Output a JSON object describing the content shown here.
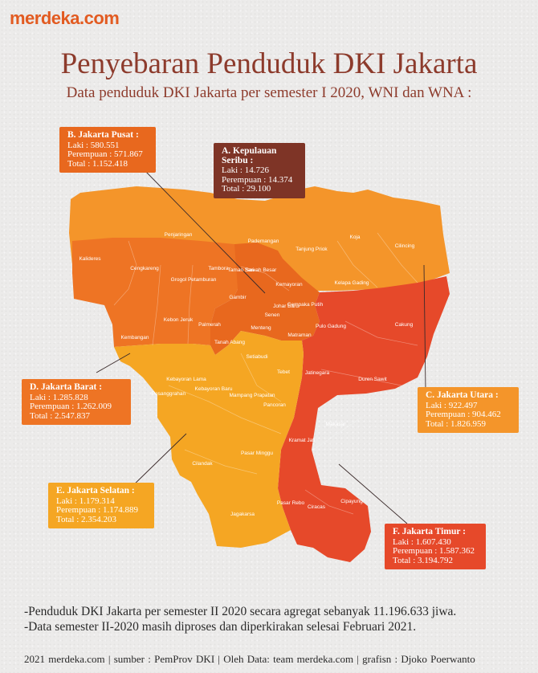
{
  "logo": "merdeka.com",
  "title": "Penyebaran Penduduk DKI Jakarta",
  "subtitle": "Data penduduk DKI Jakarta per semester I 2020, WNI dan WNA :",
  "regions": {
    "pusat": {
      "title": "B. Jakarta Pusat :",
      "laki": "Laki : 580.551",
      "perempuan": "Perempuan : 571.867",
      "total": "Total : 1.152.418",
      "color": "#e8681e"
    },
    "seribu": {
      "title": "A. Kepulauan Seribu :",
      "laki": "Laki : 14.726",
      "perempuan": "Perempuan : 14.374",
      "total": "Total : 29.100",
      "color": "#7e3426"
    },
    "barat": {
      "title": "D. Jakarta Barat :",
      "laki": "Laki : 1.285.828",
      "perempuan": "Perempuan : 1.262.009",
      "total": "Total : 2.547.837",
      "color": "#ee7424"
    },
    "utara": {
      "title": "C. Jakarta Utara :",
      "laki": "Laki : 922.497",
      "perempuan": "Perempuan : 904.462",
      "total": "Total : 1.826.959",
      "color": "#f4952a"
    },
    "selatan": {
      "title": "E. Jakarta Selatan :",
      "laki": "Laki : 1.179.314",
      "perempuan": "Perempuan : 1.174.889",
      "total": "Total : 2.354.203",
      "color": "#f5a623"
    },
    "timur": {
      "title": "F. Jakarta Timur :",
      "laki": "Laki : 1.607.430",
      "perempuan": "Perempuan : 1.587.362",
      "total": "Total : 3.194.792",
      "color": "#e6492a"
    }
  },
  "districts": [
    "Penjaringan",
    "Pademangan",
    "Koja",
    "Cilincing",
    "Tanjung Priok",
    "Kalideres",
    "Cengkareng",
    "Tambora",
    "Taman Sari",
    "Sawah Besar",
    "Grogol Petamburan",
    "Kemayoran",
    "Kelapa Gading",
    "Gambir",
    "Johar Baru",
    "Cempaka Putih",
    "Senen",
    "Pulo Gadung",
    "Cakung",
    "Kebon Jeruk",
    "Palmerah",
    "Kembangan",
    "Menteng",
    "Matraman",
    "Tanah Abang",
    "Setiabudi",
    "Tebet",
    "Jatinegara",
    "Duren Sawit",
    "Kebayoran Lama",
    "Kebayoran Baru",
    "Pesanggrahan",
    "Mampang Prapatan",
    "Pancoran",
    "Makasar",
    "Kramat Jati",
    "Cilandak",
    "Pasar Minggu",
    "Pasar Rebo",
    "Ciracas",
    "Cipayung",
    "Jagakarsa"
  ],
  "notes": [
    "-Penduduk DKI Jakarta per semester II 2020 secara agregat sebanyak 11.196.633 jiwa.",
    "-Data semester II-2020 masih diproses dan diperkirakan selesai Februari 2021."
  ],
  "footer": "2021 merdeka.com  |  sumber : PemProv DKI  |  Oleh Data: team merdeka.com  |  grafisn : Djoko Poerwanto"
}
